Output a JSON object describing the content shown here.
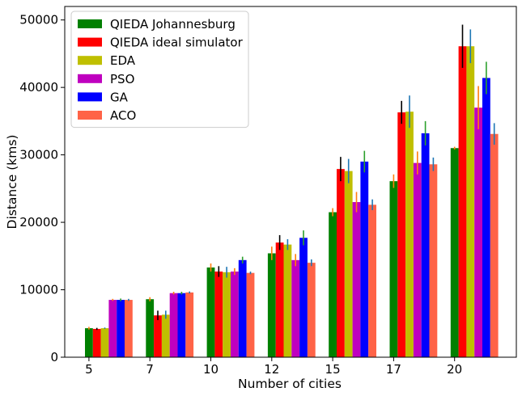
{
  "chart_data": {
    "type": "bar",
    "title": "",
    "xlabel": "Number of cities",
    "ylabel": "Distance (kms)",
    "ylim": [
      0,
      52000
    ],
    "yticks": [
      0,
      10000,
      20000,
      30000,
      40000,
      50000
    ],
    "categories": [
      "5",
      "7",
      "10",
      "12",
      "15",
      "17",
      "20"
    ],
    "legend_position": "top-left",
    "grid": false,
    "series": [
      {
        "name": "QIEDA Johannesburg",
        "color": "#008000",
        "errcolor": "#ff7f0e",
        "values": [
          4300,
          8600,
          13300,
          15400,
          21500,
          26100,
          31000
        ],
        "errors": [
          200,
          300,
          600,
          1000,
          600,
          1000,
          200
        ]
      },
      {
        "name": "QIEDA ideal simulator",
        "color": "#ff0000",
        "errcolor": "#000000",
        "values": [
          4200,
          6200,
          12700,
          17000,
          27900,
          36300,
          46100
        ],
        "errors": [
          150,
          700,
          800,
          1100,
          1800,
          1700,
          3200
        ]
      },
      {
        "name": "EDA",
        "color": "#bfbf00",
        "errcolor": "#1f77b4",
        "values": [
          4300,
          6300,
          12600,
          16700,
          27600,
          36400,
          46100
        ],
        "errors": [
          100,
          600,
          800,
          800,
          1800,
          2400,
          2500
        ]
      },
      {
        "name": "PSO",
        "color": "#bf00bf",
        "errcolor": "#ff7f0e",
        "values": [
          8500,
          9500,
          12700,
          14400,
          23000,
          28800,
          37000
        ],
        "errors": [
          150,
          200,
          500,
          900,
          1500,
          1700,
          3200
        ]
      },
      {
        "name": "GA",
        "color": "#0000ff",
        "errcolor": "#2ca02c",
        "values": [
          8500,
          9500,
          14400,
          17700,
          29000,
          33200,
          41400
        ],
        "errors": [
          200,
          200,
          500,
          1100,
          1600,
          1800,
          2400
        ]
      },
      {
        "name": "ACO",
        "color": "#ff6347",
        "errcolor": "#1f77b4",
        "values": [
          8500,
          9600,
          12500,
          14000,
          22600,
          28600,
          33100
        ],
        "errors": [
          150,
          150,
          200,
          500,
          800,
          1000,
          1600
        ]
      }
    ]
  }
}
